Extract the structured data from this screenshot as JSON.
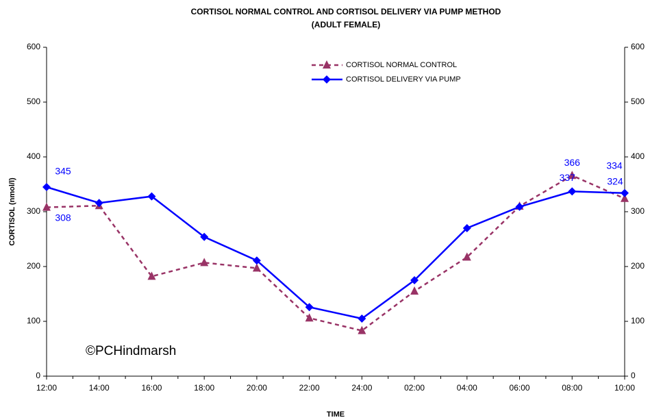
{
  "chart_data": {
    "type": "line",
    "title": "CORTISOL NORMAL CONTROL AND CORTISOL DELIVERY VIA PUMP METHOD",
    "subtitle": "(ADULT FEMALE)",
    "x_label": "TIME",
    "y_label": "CORTISOL (nmol/l)",
    "annotation": "©PCHindmarsh",
    "categories": [
      "12:00",
      "14:00",
      "16:00",
      "18:00",
      "20:00",
      "22:00",
      "24:00",
      "02:00",
      "04:00",
      "06:00",
      "08:00",
      "10:00"
    ],
    "series": [
      {
        "name": "CORTISOL NORMAL CONTROL",
        "color": "#993366",
        "dashed": true,
        "marker": "triangle",
        "values": [
          308,
          311,
          182,
          207,
          197,
          106,
          83,
          155,
          217,
          310,
          366,
          324
        ],
        "value_labels": [
          "308",
          null,
          null,
          null,
          null,
          null,
          null,
          null,
          null,
          null,
          "366",
          "324"
        ]
      },
      {
        "name": "CORTISOL DELIVERY VIA PUMP",
        "color": "#0000FF",
        "dashed": false,
        "marker": "diamond",
        "values": [
          345,
          316,
          328,
          254,
          211,
          126,
          105,
          175,
          270,
          309,
          337,
          334
        ],
        "value_labels": [
          "345",
          null,
          null,
          null,
          null,
          null,
          null,
          null,
          null,
          null,
          "337",
          "334"
        ]
      }
    ],
    "label_color": "#0000FF",
    "ylim": [
      0,
      600
    ],
    "yticks": [
      0,
      100,
      200,
      300,
      400,
      500,
      600
    ],
    "y2lim": [
      0,
      600
    ],
    "y2ticks": [
      0,
      100,
      200,
      300,
      400,
      500,
      600
    ],
    "legend": "top"
  }
}
